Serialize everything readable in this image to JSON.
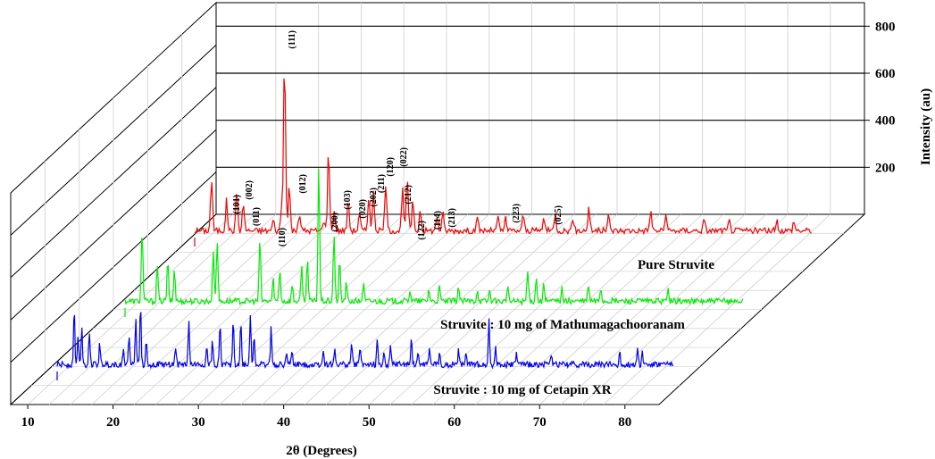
{
  "chart_data": {
    "type": "line",
    "subtype": "3d-waterfall",
    "title": "",
    "xlabel": "2θ (Degrees)",
    "ylabel": "Intensity (au)",
    "xlim": [
      8,
      84
    ],
    "ylim": [
      0,
      900
    ],
    "x_ticks": [
      "10",
      "20",
      "30",
      "40",
      "50",
      "60",
      "70",
      "80"
    ],
    "x_tick_values": [
      10,
      20,
      30,
      40,
      50,
      60,
      70,
      80
    ],
    "y_ticks": [
      "200",
      "400",
      "600",
      "800"
    ],
    "y_tick_values": [
      200,
      400,
      600,
      800
    ],
    "grid": true,
    "series": [
      {
        "name": "Pure  Struvite",
        "color": "#ff0000",
        "peaks": [
          [
            14.8,
            240
          ],
          [
            16.4,
            140
          ],
          [
            17.5,
            185
          ],
          [
            18.2,
            130
          ],
          [
            21.4,
            50
          ],
          [
            22.3,
            120
          ],
          [
            22.6,
            820
          ],
          [
            23.1,
            210
          ],
          [
            24.2,
            80
          ],
          [
            26.8,
            55
          ],
          [
            27.3,
            380
          ],
          [
            27.9,
            90
          ],
          [
            29.4,
            140
          ],
          [
            30.6,
            80
          ],
          [
            31.6,
            165
          ],
          [
            32.1,
            180
          ],
          [
            33.4,
            220
          ],
          [
            35.2,
            190
          ],
          [
            35.7,
            250
          ],
          [
            36.3,
            130
          ],
          [
            37.1,
            100
          ],
          [
            38.9,
            70
          ],
          [
            39.5,
            80
          ],
          [
            43.2,
            55
          ],
          [
            45.4,
            60
          ],
          [
            46.2,
            55
          ],
          [
            48.1,
            75
          ],
          [
            50.3,
            60
          ],
          [
            51.5,
            80
          ],
          [
            53.4,
            60
          ],
          [
            55.1,
            110
          ],
          [
            57.2,
            70
          ],
          [
            61.7,
            95
          ],
          [
            63.3,
            70
          ],
          [
            67.4,
            50
          ],
          [
            70.1,
            45
          ],
          [
            75.2,
            45
          ],
          [
            77.0,
            45
          ]
        ]
      },
      {
        "name": "Struvite : 10 mg of Mathumagachooranam",
        "color": "#00ee00",
        "peaks": [
          [
            14.8,
            340
          ],
          [
            16.4,
            170
          ],
          [
            17.5,
            185
          ],
          [
            18.2,
            150
          ],
          [
            22.3,
            240
          ],
          [
            22.7,
            290
          ],
          [
            27.2,
            290
          ],
          [
            28.6,
            100
          ],
          [
            29.3,
            150
          ],
          [
            30.6,
            75
          ],
          [
            31.6,
            165
          ],
          [
            32.2,
            210
          ],
          [
            33.4,
            650
          ],
          [
            35.0,
            320
          ],
          [
            35.6,
            190
          ],
          [
            36.3,
            80
          ],
          [
            38.1,
            80
          ],
          [
            43.0,
            55
          ],
          [
            45.0,
            55
          ],
          [
            46.1,
            65
          ],
          [
            48.1,
            70
          ],
          [
            50.1,
            55
          ],
          [
            51.4,
            50
          ],
          [
            53.3,
            60
          ],
          [
            55.4,
            140
          ],
          [
            56.3,
            110
          ],
          [
            57.1,
            80
          ],
          [
            59.0,
            60
          ],
          [
            61.8,
            75
          ],
          [
            63.1,
            65
          ],
          [
            70.2,
            55
          ]
        ]
      },
      {
        "name": "Struvite : 10 mg of Cetapin XR",
        "color": "#0000ff",
        "peaks": [
          [
            14.8,
            260
          ],
          [
            15.2,
            130
          ],
          [
            15.6,
            180
          ],
          [
            16.4,
            160
          ],
          [
            17.5,
            100
          ],
          [
            20.0,
            85
          ],
          [
            20.6,
            140
          ],
          [
            21.3,
            230
          ],
          [
            21.8,
            280
          ],
          [
            22.4,
            120
          ],
          [
            25.5,
            90
          ],
          [
            26.9,
            210
          ],
          [
            28.8,
            80
          ],
          [
            29.4,
            110
          ],
          [
            30.2,
            190
          ],
          [
            31.6,
            215
          ],
          [
            32.4,
            195
          ],
          [
            33.4,
            240
          ],
          [
            33.8,
            140
          ],
          [
            35.6,
            175
          ],
          [
            37.2,
            55
          ],
          [
            37.8,
            65
          ],
          [
            41.1,
            70
          ],
          [
            42.3,
            80
          ],
          [
            44.1,
            100
          ],
          [
            45.0,
            90
          ],
          [
            46.8,
            120
          ],
          [
            47.5,
            55
          ],
          [
            48.2,
            80
          ],
          [
            50.4,
            125
          ],
          [
            51.1,
            65
          ],
          [
            52.3,
            85
          ],
          [
            53.4,
            55
          ],
          [
            55.4,
            70
          ],
          [
            56.2,
            55
          ],
          [
            58.6,
            215
          ],
          [
            59.3,
            80
          ],
          [
            61.5,
            55
          ],
          [
            65.2,
            55
          ],
          [
            72.4,
            55
          ],
          [
            74.3,
            85
          ],
          [
            74.8,
            60
          ]
        ]
      }
    ],
    "annotations": [
      {
        "text": "(101)",
        "series": 0,
        "x": 16.4
      },
      {
        "text": "(002)",
        "series": 0,
        "x": 17.5
      },
      {
        "text": "(011)",
        "series": 0,
        "x": 18.2
      },
      {
        "text": "(110)",
        "series": 0,
        "x": 21.4
      },
      {
        "text": "(111)",
        "series": 0,
        "x": 22.6
      },
      {
        "text": "(012)",
        "series": 0,
        "x": 23.2
      },
      {
        "text": "(200)",
        "series": 0,
        "x": 26.8
      },
      {
        "text": "(103)",
        "series": 0,
        "x": 29.4
      },
      {
        "text": "(020)",
        "series": 0,
        "x": 30.6
      },
      {
        "text": "(202)",
        "series": 0,
        "x": 31.6
      },
      {
        "text": "(211)",
        "series": 0,
        "x": 32.1
      },
      {
        "text": "(120)",
        "series": 0,
        "x": 33.4
      },
      {
        "text": "(022)",
        "series": 0,
        "x": 35.2
      },
      {
        "text": "(212)",
        "series": 0,
        "x": 35.7
      },
      {
        "text": "(122)",
        "series": 0,
        "x": 37.1
      },
      {
        "text": "(114)",
        "series": 0,
        "x": 38.9
      },
      {
        "text": "(213)",
        "series": 0,
        "x": 39.5
      },
      {
        "text": "(223)",
        "series": 0,
        "x": 55.1
      },
      {
        "text": "(025)",
        "series": 0,
        "x": 61.7
      }
    ]
  }
}
